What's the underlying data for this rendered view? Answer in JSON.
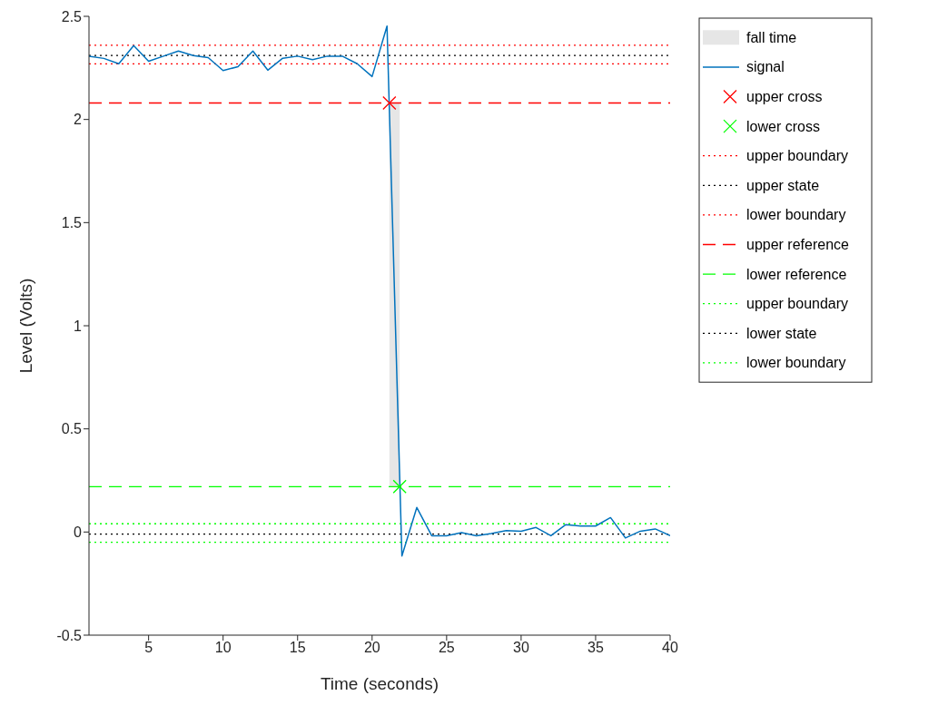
{
  "chart_data": {
    "type": "line",
    "xlabel": "Time (seconds)",
    "ylabel": "Level (Volts)",
    "xlim": [
      1,
      40
    ],
    "xticks": [
      5,
      10,
      15,
      20,
      25,
      30,
      35,
      40
    ],
    "ylim": [
      -0.5,
      2.5
    ],
    "yticks": [
      -0.5,
      0,
      0.5,
      1,
      1.5,
      2,
      2.5
    ],
    "grid": false,
    "legend": "right",
    "series": [
      {
        "name": "signal",
        "type": "line",
        "color": "#0072bd",
        "marker": "none",
        "x": [
          1,
          2,
          3,
          4,
          5,
          6,
          7,
          8,
          9,
          10,
          11,
          12,
          13,
          14,
          15,
          16,
          17,
          18,
          19,
          20,
          21,
          22,
          23,
          24,
          25,
          26,
          27,
          28,
          29,
          30,
          31,
          32,
          33,
          34,
          35,
          36,
          37,
          38,
          39,
          40
        ],
        "values": [
          2.307,
          2.296,
          2.27,
          2.358,
          2.282,
          2.307,
          2.332,
          2.31,
          2.3,
          2.237,
          2.256,
          2.332,
          2.239,
          2.297,
          2.307,
          2.29,
          2.307,
          2.307,
          2.27,
          2.208,
          2.453,
          -0.116,
          0.119,
          -0.018,
          -0.018,
          -0.003,
          -0.018,
          -0.007,
          0.007,
          0.004,
          0.022,
          -0.018,
          0.036,
          0.029,
          0.029,
          0.07,
          -0.029,
          0.004,
          0.015,
          -0.018
        ]
      },
      {
        "name": "upper cross",
        "type": "scatter",
        "color": "#ff0000",
        "marker": "cross",
        "x": [
          21.16
        ],
        "values": [
          2.08
        ]
      },
      {
        "name": "lower cross",
        "type": "scatter",
        "color": "#00ff00",
        "marker": "cross",
        "x": [
          21.85
        ],
        "values": [
          0.22
        ]
      }
    ],
    "bands": [
      {
        "axis": "x",
        "from": 21.16,
        "to": 21.85,
        "label": "fall time",
        "color": "#e6e6e6"
      }
    ],
    "ref_lines": [
      {
        "axis": "y",
        "value": 2.36,
        "label": "upper boundary",
        "color": "#ff0000",
        "line_style": "dotted"
      },
      {
        "axis": "y",
        "value": 2.31,
        "label": "upper state",
        "color": "#000000",
        "line_style": "dotted"
      },
      {
        "axis": "y",
        "value": 2.27,
        "label": "lower boundary",
        "color": "#ff0000",
        "line_style": "dotted"
      },
      {
        "axis": "y",
        "value": 2.08,
        "label": "upper reference",
        "color": "#ff0000",
        "line_style": "dashed"
      },
      {
        "axis": "y",
        "value": 0.22,
        "label": "lower reference",
        "color": "#00ff00",
        "line_style": "dashed"
      },
      {
        "axis": "y",
        "value": 0.04,
        "label": "upper boundary",
        "color": "#00ff00",
        "line_style": "dotted"
      },
      {
        "axis": "y",
        "value": -0.01,
        "label": "lower state",
        "color": "#000000",
        "line_style": "dotted"
      },
      {
        "axis": "y",
        "value": -0.05,
        "label": "lower boundary",
        "color": "#00ff00",
        "line_style": "dotted"
      }
    ]
  }
}
